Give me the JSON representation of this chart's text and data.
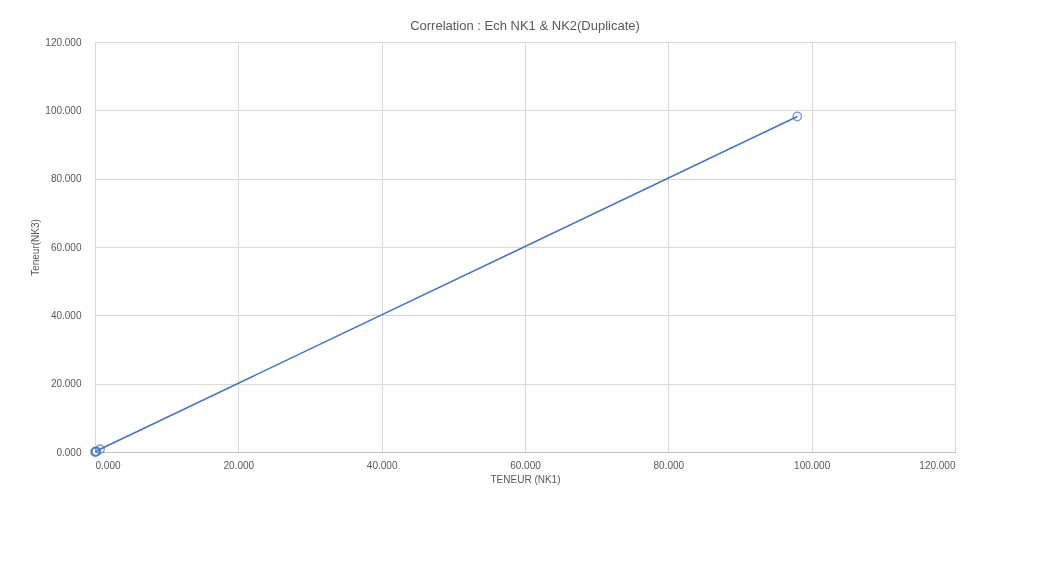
{
  "chart_data": {
    "type": "line",
    "title": "Correlation : Ech NK1 & NK2(Duplicate)",
    "xlabel": "TENEUR (NK1)",
    "ylabel": "Teneur(NK3)",
    "x": [
      0.0,
      0.1,
      0.2,
      0.7,
      98.0
    ],
    "series": [
      {
        "color": "#4472c4",
        "values": [
          0.0,
          0.1,
          0.2,
          0.8,
          98.2
        ]
      }
    ],
    "xlim": [
      0,
      120
    ],
    "ylim": [
      0,
      120
    ],
    "xticks": [
      {
        "value": 0,
        "label": "0.000"
      },
      {
        "value": 20,
        "label": "20.000"
      },
      {
        "value": 40,
        "label": "40.000"
      },
      {
        "value": 60,
        "label": "60.000"
      },
      {
        "value": 80,
        "label": "80.000"
      },
      {
        "value": 100,
        "label": "100.000"
      },
      {
        "value": 120,
        "label": "120.000"
      }
    ],
    "yticks": [
      {
        "value": 0,
        "label": "0.000"
      },
      {
        "value": 20,
        "label": "20.000"
      },
      {
        "value": 40,
        "label": "40.000"
      },
      {
        "value": 60,
        "label": "60.000"
      },
      {
        "value": 80,
        "label": "80.000"
      },
      {
        "value": 100,
        "label": "100.000"
      },
      {
        "value": 120,
        "label": "120.000"
      }
    ],
    "grid": true,
    "marker": "circle",
    "line_style": "solid"
  }
}
